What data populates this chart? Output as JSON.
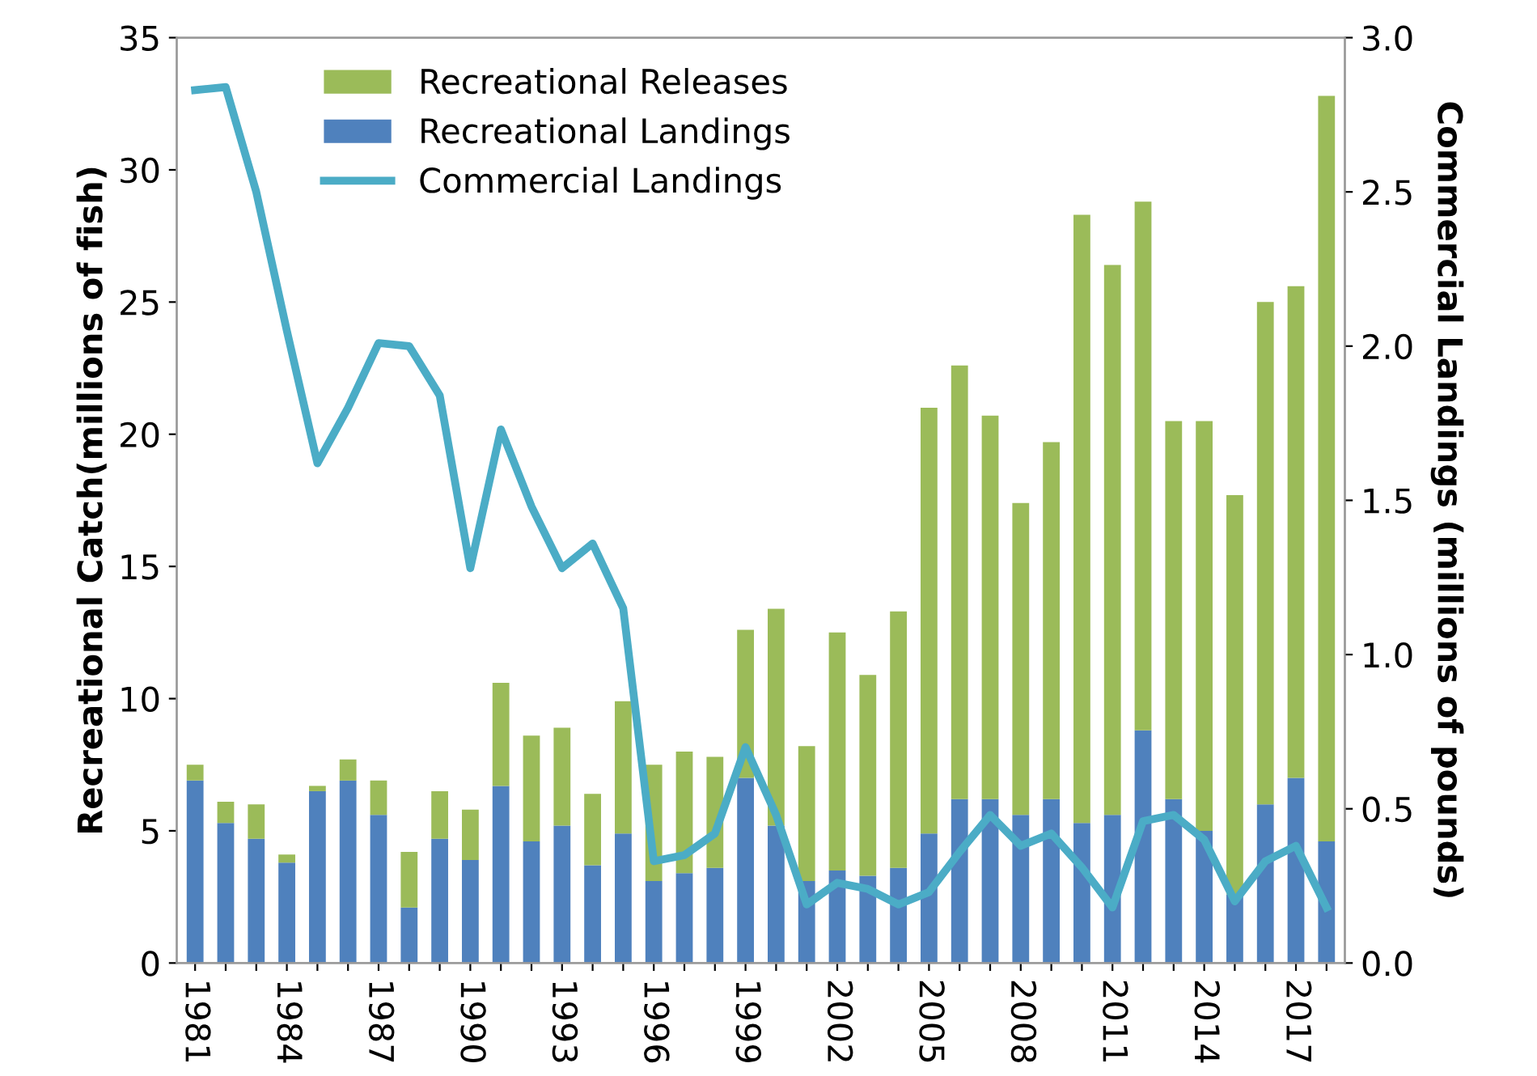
{
  "chart_data": {
    "type": "bar",
    "stacked": true,
    "ylabel": "Recreational Catch(millions of fish)",
    "y2label": "Commercial Landings (millions of pounds)",
    "categories": [
      "1981",
      null,
      null,
      "1984",
      null,
      null,
      "1987",
      null,
      null,
      "1990",
      null,
      null,
      "1993",
      null,
      null,
      "1996",
      null,
      null,
      "1999",
      null,
      null,
      "2002",
      null,
      null,
      "2005",
      null,
      null,
      "2008",
      null,
      null,
      "2011",
      null,
      null,
      "2014",
      null,
      null,
      "2017",
      null
    ],
    "series": [
      {
        "name": "Recreational Landings",
        "color": "#4f81bd",
        "values": [
          6.9,
          5.3,
          4.7,
          3.8,
          6.5,
          6.9,
          5.6,
          2.1,
          4.7,
          3.9,
          6.7,
          4.6,
          5.2,
          3.7,
          4.9,
          3.1,
          3.4,
          3.6,
          7.0,
          5.2,
          3.1,
          3.5,
          3.3,
          3.6,
          4.9,
          6.2,
          6.2,
          5.6,
          6.2,
          5.3,
          5.6,
          8.8,
          6.2,
          5.0,
          2.6,
          6.0,
          7.0,
          4.6
        ]
      },
      {
        "name": "Recreational Releases",
        "color": "#9bbb59",
        "values": [
          0.6,
          0.8,
          1.3,
          0.3,
          0.2,
          0.8,
          1.3,
          2.1,
          1.8,
          1.9,
          3.9,
          4.0,
          3.7,
          2.7,
          5.0,
          4.4,
          4.6,
          4.2,
          5.6,
          8.2,
          5.1,
          9.0,
          7.6,
          9.7,
          16.1,
          16.4,
          14.5,
          11.8,
          13.5,
          23.0,
          20.8,
          20.0,
          14.3,
          15.5,
          15.1,
          19.0,
          18.6,
          28.2
        ]
      },
      {
        "name": "Commercial Landings",
        "type": "line",
        "axis": "y2",
        "color": "#4bacc6",
        "values": [
          2.83,
          2.84,
          2.5,
          2.05,
          1.62,
          1.8,
          2.01,
          2.0,
          1.84,
          1.28,
          1.73,
          1.48,
          1.28,
          1.36,
          1.15,
          0.33,
          0.35,
          0.42,
          0.7,
          0.48,
          0.19,
          0.26,
          0.24,
          0.19,
          0.23,
          0.36,
          0.48,
          0.38,
          0.42,
          0.31,
          0.18,
          0.46,
          0.48,
          0.4,
          0.2,
          0.33,
          0.38,
          0.18
        ]
      }
    ],
    "ylim": [
      0,
      35
    ],
    "yticks": [
      0,
      5,
      10,
      15,
      20,
      25,
      30,
      35
    ],
    "y2lim": [
      0,
      3
    ],
    "y2ticks": [
      {
        "value": 0,
        "label": "0.0"
      },
      {
        "value": 0.5,
        "label": "0.5"
      },
      {
        "value": 1,
        "label": "1.0"
      },
      {
        "value": 1.5,
        "label": "1.5"
      },
      {
        "value": 2,
        "label": "2.0"
      },
      {
        "value": 2.5,
        "label": "2.5"
      },
      {
        "value": 3,
        "label": "3.0"
      }
    ],
    "legend": "top left",
    "grid": false,
    "marker": "none",
    "line_style": "solid"
  }
}
